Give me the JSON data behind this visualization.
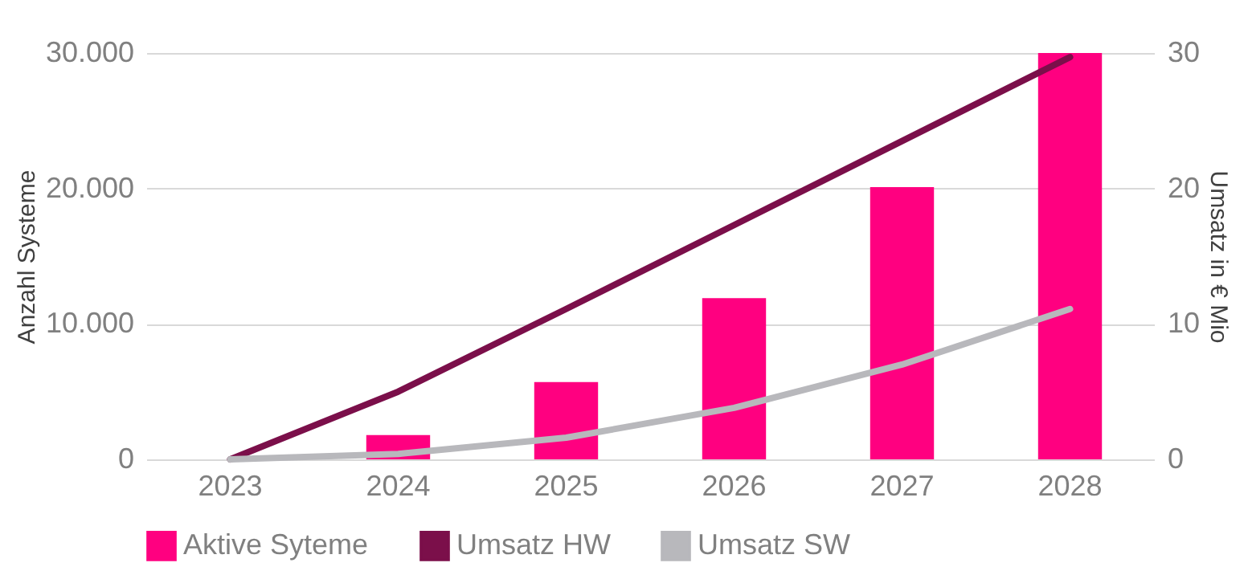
{
  "chart_data": {
    "type": "bar",
    "categories": [
      "2023",
      "2024",
      "2025",
      "2026",
      "2027",
      "2028"
    ],
    "ylabel": "Anzahl Systeme",
    "y2label": "Umsatz in € Mio",
    "ylim": [
      0,
      30000
    ],
    "yticks": [
      {
        "value": 0,
        "label": "0"
      },
      {
        "value": 10000,
        "label": "10.000"
      },
      {
        "value": 20000,
        "label": "20.000"
      },
      {
        "value": 30000,
        "label": "30.000"
      }
    ],
    "y2lim": [
      0,
      30
    ],
    "y2ticks": [
      0,
      10,
      20,
      30
    ],
    "series": [
      {
        "name": "Aktive Syteme",
        "color": "#ff0080",
        "values": [
          0,
          1800,
          5700,
          11900,
          20100,
          30000
        ]
      },
      {
        "name": "Umsatz HW",
        "type": "line",
        "axis": "y2",
        "color": "#7b0f4a",
        "values": [
          0,
          5.0,
          11.1,
          17.3,
          23.5,
          29.7
        ]
      },
      {
        "name": "Umsatz SW",
        "type": "line",
        "axis": "y2",
        "color": "#b8b8bc",
        "values": [
          0,
          0.4,
          1.6,
          3.8,
          7.0,
          11.1
        ]
      }
    ],
    "grid": "y",
    "legend": "bottom",
    "marker": "none",
    "line_style": "solid"
  }
}
